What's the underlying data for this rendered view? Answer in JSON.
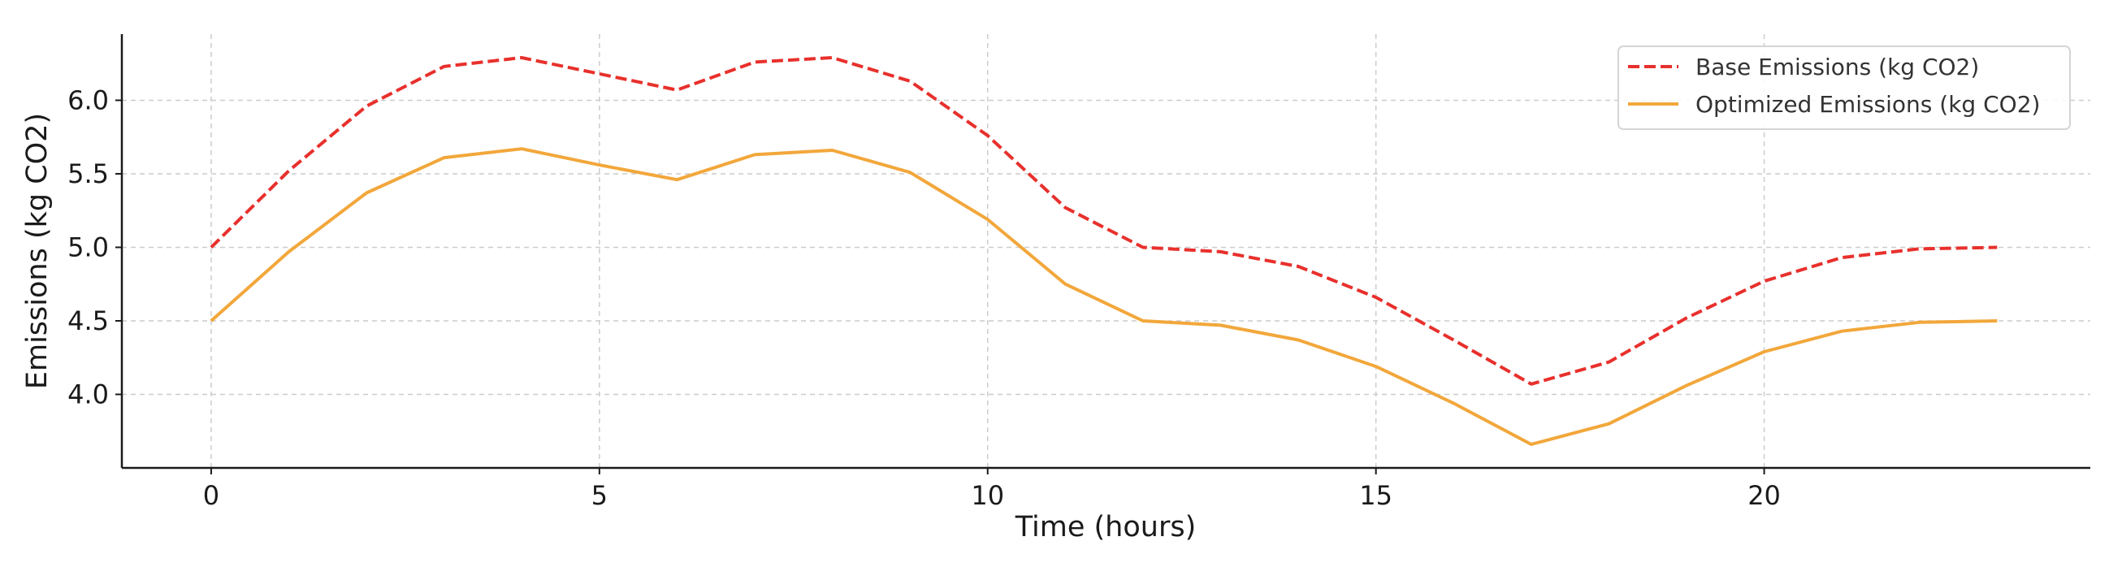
{
  "chart_data": {
    "type": "line",
    "title": "",
    "xlabel": "Time (hours)",
    "ylabel": "Emissions (kg CO2)",
    "xlim": [
      -1.15,
      24.2
    ],
    "ylim": [
      3.5,
      6.45
    ],
    "xticks": [
      0,
      5,
      10,
      15,
      20
    ],
    "xtick_labels": [
      "0",
      "5",
      "10",
      "15",
      "20"
    ],
    "yticks": [
      4.0,
      4.5,
      5.0,
      5.5,
      6.0
    ],
    "ytick_labels": [
      "4.0",
      "4.5",
      "5.0",
      "5.5",
      "6.0"
    ],
    "grid": true,
    "legend_position": "top-right",
    "x": [
      0,
      1,
      2,
      3,
      4,
      5,
      6,
      7,
      8,
      9,
      10,
      11,
      12,
      13,
      14,
      15,
      16,
      17,
      18,
      19,
      20,
      21,
      22,
      23
    ],
    "series": [
      {
        "name": "Base Emissions (kg CO2)",
        "color": "#e8302c",
        "line_style": "dashed",
        "values": [
          5.0,
          5.52,
          5.96,
          6.23,
          6.29,
          6.18,
          6.07,
          6.26,
          6.29,
          6.13,
          5.76,
          5.27,
          5.0,
          4.97,
          4.87,
          4.66,
          4.37,
          4.07,
          4.22,
          4.52,
          4.77,
          4.93,
          4.99,
          5.0
        ]
      },
      {
        "name": "Optimized Emissions (kg CO2)",
        "color": "#f2a73b",
        "line_style": "solid",
        "values": [
          4.5,
          4.97,
          5.37,
          5.61,
          5.67,
          5.56,
          5.46,
          5.63,
          5.66,
          5.51,
          5.19,
          4.75,
          4.5,
          4.47,
          4.37,
          4.19,
          3.94,
          3.66,
          3.8,
          4.06,
          4.29,
          4.43,
          4.49,
          4.5
        ]
      }
    ]
  }
}
